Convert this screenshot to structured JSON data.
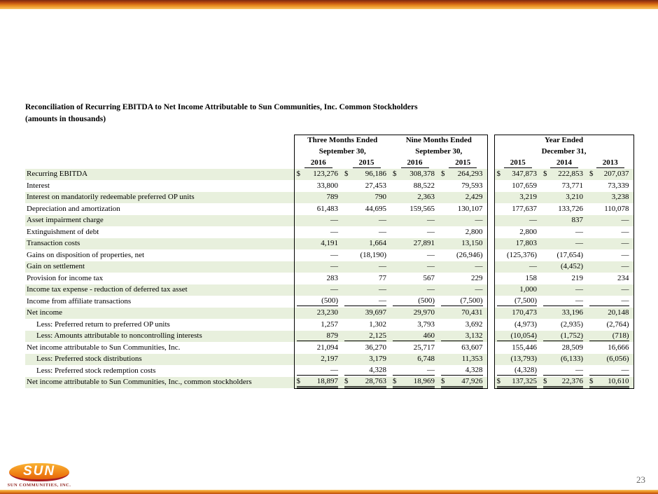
{
  "page": {
    "title": "Reconciliation of Recurring EBITDA to Net Income Attributable to Sun Communities, Inc. Common Stockholders",
    "subtitle": "(amounts in thousands)",
    "page_number": "23",
    "logo_text": "SUN",
    "logo_caption": "SUN COMMUNITIES, INC."
  },
  "colors": {
    "accent_orange": "#e98b1e",
    "accent_dark_red": "#7a2810",
    "row_green": "#e8f0dd",
    "logo_red": "#a81e22"
  },
  "table": {
    "col_groups": [
      {
        "label_line1": "Three Months Ended",
        "label_line2": "September 30,",
        "years": [
          "2016",
          "2015"
        ]
      },
      {
        "label_line1": "Nine Months Ended",
        "label_line2": "September 30,",
        "years": [
          "2016",
          "2015"
        ]
      },
      {
        "label_line1": "Year Ended",
        "label_line2": "December 31,",
        "years": [
          "2015",
          "2014",
          "2013"
        ]
      }
    ],
    "rows": [
      {
        "label": "Recurring EBITDA",
        "values": [
          "$ 123,276",
          "$ 96,186",
          "$ 308,378",
          "$ 264,293",
          "$ 347,873",
          "$ 222,853",
          "$ 207,037"
        ]
      },
      {
        "label": "Interest",
        "values": [
          "33,800",
          "27,453",
          "88,522",
          "79,593",
          "107,659",
          "73,771",
          "73,339"
        ]
      },
      {
        "label": "Interest on mandatorily redeemable preferred OP units",
        "values": [
          "789",
          "790",
          "2,363",
          "2,429",
          "3,219",
          "3,210",
          "3,238"
        ]
      },
      {
        "label": "Depreciation and amortization",
        "values": [
          "61,483",
          "44,695",
          "159,565",
          "130,107",
          "177,637",
          "133,726",
          "110,078"
        ]
      },
      {
        "label": "Asset impairment charge",
        "values": [
          "—",
          "—",
          "—",
          "—",
          "—",
          "837",
          "—"
        ]
      },
      {
        "label": "Extinguishment of debt",
        "values": [
          "—",
          "—",
          "—",
          "2,800",
          "2,800",
          "—",
          "—"
        ]
      },
      {
        "label": "Transaction costs",
        "values": [
          "4,191",
          "1,664",
          "27,891",
          "13,150",
          "17,803",
          "—",
          "—"
        ]
      },
      {
        "label": "Gains on disposition of properties, net",
        "values": [
          "—",
          "(18,190)",
          "—",
          "(26,946)",
          "(125,376)",
          "(17,654)",
          "—"
        ]
      },
      {
        "label": "Gain on settlement",
        "values": [
          "—",
          "—",
          "—",
          "—",
          "—",
          "(4,452)",
          "—"
        ]
      },
      {
        "label": "Provision for income tax",
        "values": [
          "283",
          "77",
          "567",
          "229",
          "158",
          "219",
          "234"
        ]
      },
      {
        "label": "Income tax expense - reduction of deferred tax asset",
        "values": [
          "—",
          "—",
          "—",
          "—",
          "1,000",
          "—",
          "—"
        ]
      },
      {
        "label": "Income from affiliate transactions",
        "rule": "single",
        "values": [
          "(500)",
          "—",
          "(500)",
          "(7,500)",
          "(7,500)",
          "—",
          "—"
        ]
      },
      {
        "label": "Net income",
        "values": [
          "23,230",
          "39,697",
          "29,970",
          "70,431",
          "170,473",
          "33,196",
          "20,148"
        ]
      },
      {
        "label": "Less: Preferred return to preferred OP units",
        "indent": true,
        "values": [
          "1,257",
          "1,302",
          "3,793",
          "3,692",
          "(4,973)",
          "(2,935)",
          "(2,764)"
        ]
      },
      {
        "label": "Less: Amounts attributable to noncontrolling interests",
        "indent": true,
        "rule": "single",
        "values": [
          "879",
          "2,125",
          "460",
          "3,132",
          "(10,054)",
          "(1,752)",
          "(718)"
        ]
      },
      {
        "label": "Net income attributable to Sun Communities, Inc.",
        "values": [
          "21,094",
          "36,270",
          "25,717",
          "63,607",
          "155,446",
          "28,509",
          "16,666"
        ]
      },
      {
        "label": "Less: Preferred stock distributions",
        "indent": true,
        "values": [
          "2,197",
          "3,179",
          "6,748",
          "11,353",
          "(13,793)",
          "(6,133)",
          "(6,056)"
        ]
      },
      {
        "label": "Less: Preferred stock redemption costs",
        "indent": true,
        "rule": "single",
        "values": [
          "—",
          "4,328",
          "—",
          "4,328",
          "(4,328)",
          "—",
          "—"
        ]
      },
      {
        "label": "Net income attributable to Sun Communities, Inc., common stockholders",
        "rule": "double",
        "values": [
          "$ 18,897",
          "$ 28,763",
          "$ 18,969",
          "$ 47,926",
          "$ 137,325",
          "$ 22,376",
          "$ 10,610"
        ]
      }
    ]
  }
}
